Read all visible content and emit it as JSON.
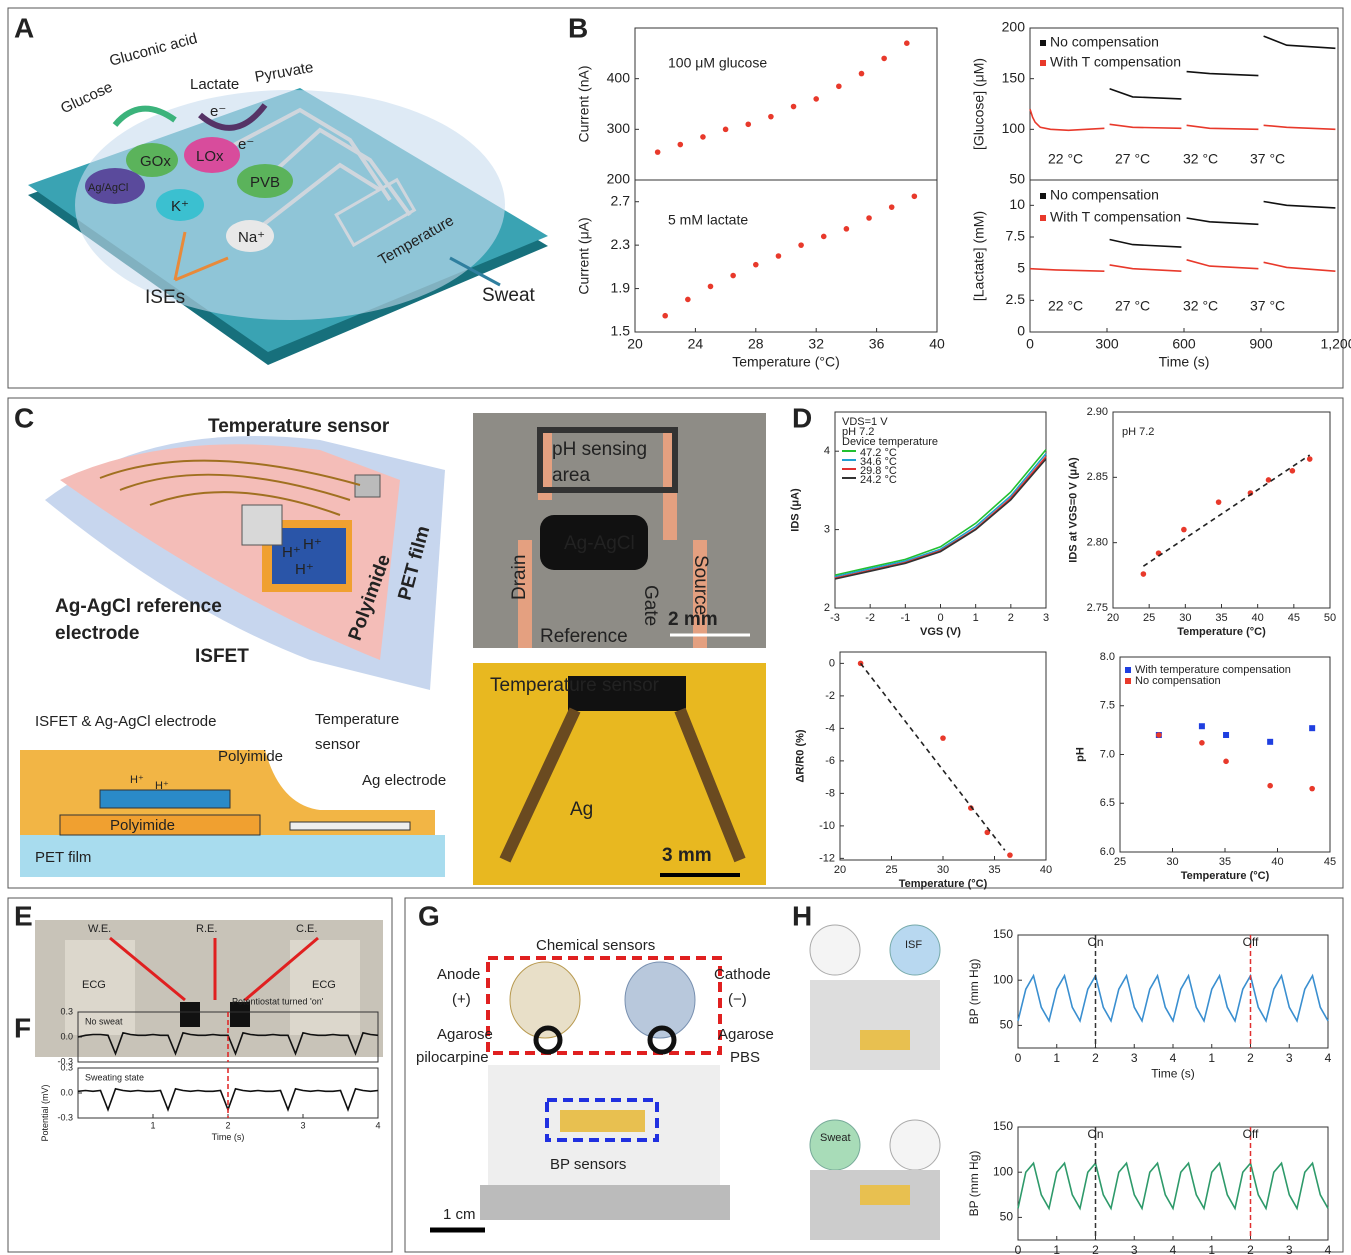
{
  "panels": [
    "A",
    "B",
    "C",
    "D",
    "E",
    "F",
    "G",
    "H"
  ],
  "figure": {
    "a": [
      "Glucose",
      "Gluconic acid",
      "Lactate",
      "Pyruvate",
      "GOx",
      "LOx",
      "Ag/AgCl",
      "PVB",
      "K⁺",
      "Na⁺",
      "ISEs",
      "Temperature",
      "Sweat",
      "e⁻",
      "e⁻"
    ],
    "c": [
      "Temperature sensor",
      "H⁺",
      "H⁺",
      "H⁺",
      "Ag-AgCl reference",
      "electrode",
      "ISFET",
      "Polyimide",
      "PET film",
      "ISFET & Ag-AgCl electrode",
      "Temperature",
      "sensor",
      "Polyimide",
      "Ag electrode",
      "H⁺",
      "H⁺",
      "Polyimide",
      "PET film",
      "pH sensing",
      "area",
      "Drain",
      "Source",
      "Ag-AgCl",
      "Gate",
      "Reference",
      "2 mm",
      "Temperature sensor",
      "Ag",
      "3 mm"
    ],
    "e": [
      "W.E.",
      "R.E.",
      "C.E.",
      "ECG",
      "ECG"
    ],
    "g": [
      "Chemical sensors",
      "Anode",
      "(+)",
      "Cathode",
      "(−)",
      "Agarose",
      "pilocarpine",
      "Agarose",
      "PBS",
      "BP sensors",
      "1 cm"
    ],
    "h": [
      "ISF",
      "Sweat"
    ]
  },
  "chart_data": [
    {
      "type": "scatter",
      "ylabel": "Current (nA)",
      "xlim": [
        20,
        40
      ],
      "ylim": [
        200,
        500
      ],
      "yticks": [
        200,
        300,
        400
      ],
      "annotations": [
        "100 μM glucose"
      ],
      "series": [
        {
          "color": "#e8392b",
          "x": [
            21.5,
            23,
            24.5,
            26,
            27.5,
            29,
            30.5,
            32,
            33.5,
            35,
            36.5,
            38
          ],
          "values": [
            255,
            270,
            285,
            300,
            310,
            325,
            345,
            360,
            385,
            410,
            440,
            470
          ]
        }
      ]
    },
    {
      "type": "scatter",
      "xlabel": "Temperature (°C)",
      "ylabel": "Current (μA)",
      "xlim": [
        20,
        40
      ],
      "ylim": [
        1.5,
        2.9
      ],
      "xticks": [
        20,
        24,
        28,
        32,
        36,
        40
      ],
      "yticks": [
        1.5,
        1.9,
        2.3,
        2.7
      ],
      "annotations": [
        "5 mM lactate"
      ],
      "series": [
        {
          "color": "#e8392b",
          "x": [
            22,
            23.5,
            25,
            26.5,
            28,
            29.5,
            31,
            32.5,
            34,
            35.5,
            37,
            38.5
          ],
          "values": [
            1.65,
            1.8,
            1.92,
            2.02,
            2.12,
            2.2,
            2.3,
            2.38,
            2.45,
            2.55,
            2.65,
            2.75
          ]
        }
      ]
    },
    {
      "type": "line",
      "ylabel": "[Glucose] (μM)",
      "xlim": [
        0,
        1200
      ],
      "ylim": [
        50,
        200
      ],
      "yticks": [
        50,
        100,
        150,
        200
      ],
      "annotations": [
        "22 °C",
        "27 °C",
        "32 °C",
        "37 °C"
      ],
      "series": [
        {
          "name": "No compensation",
          "color": "#111111",
          "x": [
            310,
            400,
            590,
            null,
            610,
            700,
            890,
            null,
            910,
            1000,
            1190
          ],
          "values": [
            140,
            132,
            130,
            null,
            157,
            155,
            153,
            null,
            192,
            183,
            180
          ]
        },
        {
          "name": "With T compensation",
          "color": "#e8392b",
          "x": [
            0,
            10,
            20,
            40,
            80,
            150,
            290,
            null,
            310,
            400,
            590,
            null,
            610,
            700,
            890,
            null,
            910,
            1000,
            1190
          ],
          "values": [
            120,
            112,
            107,
            102,
            100,
            99,
            101,
            null,
            105,
            102,
            101,
            null,
            104,
            101,
            100,
            null,
            104,
            102,
            100
          ]
        }
      ]
    },
    {
      "type": "line",
      "xlabel": "Time (s)",
      "ylabel": "[Lactate] (mM)",
      "xlim": [
        0,
        1200
      ],
      "ylim": [
        0,
        12
      ],
      "xticks": [
        0,
        300,
        600,
        900,
        {
          "value": 1200,
          "label": "1,200"
        }
      ],
      "yticks": [
        0,
        2.5,
        5,
        7.5,
        10
      ],
      "annotations": [
        "22 °C",
        "27 °C",
        "32 °C",
        "37 °C"
      ],
      "series": [
        {
          "name": "No compensation",
          "color": "#111111",
          "x": [
            310,
            400,
            590,
            null,
            610,
            700,
            890,
            null,
            910,
            1000,
            1190
          ],
          "values": [
            7.3,
            6.9,
            6.7,
            null,
            9.0,
            8.7,
            8.5,
            null,
            10.3,
            10.0,
            9.8
          ]
        },
        {
          "name": "With T compensation",
          "color": "#e8392b",
          "x": [
            0,
            100,
            290,
            null,
            310,
            400,
            590,
            null,
            610,
            700,
            890,
            null,
            910,
            1000,
            1190
          ],
          "values": [
            5.0,
            4.9,
            4.8,
            null,
            5.3,
            5.0,
            4.8,
            null,
            5.7,
            5.2,
            5.0,
            null,
            5.5,
            5.1,
            4.8
          ]
        }
      ]
    },
    {
      "type": "line",
      "xlabel": "VGS (V)",
      "ylabel": "IDS (μA)",
      "xlim": [
        -3,
        3
      ],
      "ylim": [
        2,
        4.5
      ],
      "xticks": [
        -3,
        -2,
        -1,
        0,
        1,
        2,
        3
      ],
      "yticks": [
        2,
        3,
        4
      ],
      "annotations": [
        "VDS=1 V",
        "pH 7.2",
        "Device temperature"
      ],
      "x": [
        -3,
        -2,
        -1,
        0,
        1,
        2,
        3
      ],
      "series": [
        {
          "name": "47.2 °C",
          "color": "#22c030",
          "values": [
            2.42,
            2.52,
            2.62,
            2.78,
            3.08,
            3.48,
            4.02
          ]
        },
        {
          "name": "34.6 °C",
          "color": "#20a0d0",
          "values": [
            2.4,
            2.5,
            2.6,
            2.75,
            3.04,
            3.43,
            3.97
          ]
        },
        {
          "name": "29.8 °C",
          "color": "#e03030",
          "values": [
            2.38,
            2.48,
            2.58,
            2.73,
            3.01,
            3.4,
            3.93
          ]
        },
        {
          "name": "24.2 °C",
          "color": "#333333",
          "values": [
            2.37,
            2.47,
            2.57,
            2.72,
            3.0,
            3.38,
            3.9
          ]
        }
      ]
    },
    {
      "type": "scatter",
      "xlabel": "Temperature (°C)",
      "ylabel": "IDS at VGS=0 V (μA)",
      "xlim": [
        20,
        50
      ],
      "ylim": [
        2.75,
        2.9
      ],
      "xticks": [
        20,
        25,
        30,
        35,
        40,
        45,
        50
      ],
      "yticks": [
        2.75,
        {
          "value": 2.8,
          "label": "2.80"
        },
        2.85,
        {
          "value": 2.9,
          "label": "2.90"
        }
      ],
      "annotations": [
        "pH 7.2"
      ],
      "series": [
        {
          "color": "#e8392b",
          "x": [
            24.2,
            26.3,
            29.8,
            34.6,
            39,
            41.5,
            44.8,
            47.2
          ],
          "values": [
            2.776,
            2.792,
            2.81,
            2.831,
            2.838,
            2.848,
            2.855,
            2.864
          ]
        },
        {
          "type": "line",
          "dashed": true,
          "color": "#222222",
          "x": [
            24.2,
            47.2
          ],
          "values": [
            2.782,
            2.867
          ]
        }
      ]
    },
    {
      "type": "scatter",
      "xlabel": "Temperature (°C)",
      "ylabel": "ΔR/R0 (%)",
      "xlim": [
        20,
        40
      ],
      "ylim": [
        -12.1,
        0.7
      ],
      "xticks": [
        20,
        25,
        30,
        35,
        40
      ],
      "yticks": [
        0,
        -2,
        -4,
        -6,
        -8,
        -10,
        -12
      ],
      "series": [
        {
          "color": "#e8392b",
          "x": [
            22,
            30,
            32.7,
            34.3,
            36.5
          ],
          "values": [
            0,
            -4.6,
            -8.9,
            -10.4,
            -11.8
          ]
        },
        {
          "type": "line",
          "dashed": true,
          "color": "#222222",
          "x": [
            22,
            36
          ],
          "values": [
            0,
            -11.5
          ]
        }
      ]
    },
    {
      "type": "scatter",
      "xlabel": "Temperature (°C)",
      "ylabel": "pH",
      "xlim": [
        25,
        45
      ],
      "ylim": [
        6,
        8
      ],
      "xticks": [
        25,
        30,
        35,
        40,
        45
      ],
      "yticks": [
        {
          "value": 6,
          "label": "6.0"
        },
        6.5,
        {
          "value": 7,
          "label": "7.0"
        },
        7.5,
        {
          "value": 8,
          "label": "8.0"
        }
      ],
      "series": [
        {
          "name": "With temperature compensation",
          "color": "#1f3fe0",
          "marker": "square",
          "x": [
            28.7,
            32.8,
            35.1,
            39.3,
            43.3
          ],
          "values": [
            7.2,
            7.29,
            7.2,
            7.13,
            7.27
          ]
        },
        {
          "name": "No compensation",
          "color": "#e8392b",
          "x": [
            28.7,
            32.8,
            35.1,
            39.3,
            43.3
          ],
          "values": [
            7.2,
            7.12,
            6.93,
            6.68,
            6.65
          ]
        }
      ]
    },
    {
      "type": "line",
      "xlim": [
        0,
        4
      ],
      "ylim": [
        -0.3,
        0.3
      ],
      "yticks": [
        -0.3,
        {
          "value": 0,
          "label": "0.0"
        },
        0.3
      ],
      "annotations": [
        "No sweat",
        "Potentiostat turned 'on'"
      ],
      "vlines": [
        2
      ],
      "x": [
        0,
        0.1,
        0.2,
        0.3,
        0.4,
        0.5,
        0.6,
        0.7,
        0.8,
        0.9,
        1,
        1.1,
        1.2,
        1.3,
        1.4,
        1.5,
        1.6,
        1.7,
        1.8,
        1.9,
        2,
        2.1,
        2.2,
        2.3,
        2.4,
        2.5,
        2.6,
        2.7,
        2.8,
        2.9,
        3,
        3.1,
        3.2,
        3.3,
        3.4,
        3.5,
        3.6,
        3.7,
        3.8,
        3.9,
        4
      ],
      "series": [
        {
          "color": "#111111",
          "values": [
            0,
            0.02,
            0.03,
            0.03,
            0.02,
            -0.2,
            0.05,
            0.03,
            0.02,
            0.02,
            0.03,
            0.02,
            0.02,
            -0.2,
            0.05,
            0.03,
            0.02,
            0.02,
            0.03,
            0.02,
            0.02,
            -0.2,
            0.05,
            0.03,
            0.02,
            0.02,
            0.03,
            0.02,
            0.02,
            -0.2,
            0.05,
            0.03,
            0.02,
            0.02,
            0.03,
            0.02,
            0.02,
            -0.2,
            0.05,
            0.03,
            0.02
          ]
        }
      ]
    },
    {
      "type": "line",
      "xlabel": "Time (s)",
      "ylabel": "Potential (mV)",
      "xlim": [
        0,
        4
      ],
      "ylim": [
        -0.3,
        0.3
      ],
      "xticks": [
        1,
        2,
        3,
        4
      ],
      "yticks": [
        -0.3,
        {
          "value": 0,
          "label": "0.0"
        },
        0.3
      ],
      "annotations": [
        "Sweating state"
      ],
      "vlines": [
        2
      ],
      "x": [
        0,
        0.1,
        0.2,
        0.3,
        0.4,
        0.5,
        0.6,
        0.7,
        0.8,
        0.9,
        1,
        1.1,
        1.2,
        1.3,
        1.4,
        1.5,
        1.6,
        1.7,
        1.8,
        1.9,
        2,
        2.1,
        2.2,
        2.3,
        2.4,
        2.5,
        2.6,
        2.7,
        2.8,
        2.9,
        3,
        3.1,
        3.2,
        3.3,
        3.4,
        3.5,
        3.6,
        3.7,
        3.8,
        3.9,
        4
      ],
      "series": [
        {
          "color": "#111111",
          "values": [
            0.02,
            0.03,
            0.02,
            0.03,
            -0.2,
            0.05,
            0.03,
            0.02,
            0.03,
            0.02,
            0.02,
            0.03,
            -0.2,
            0.05,
            0.03,
            0.02,
            0.03,
            0.02,
            0.02,
            0.03,
            -0.2,
            0.05,
            0.03,
            0.02,
            0.03,
            0.02,
            0.02,
            0.03,
            -0.2,
            0.05,
            0.03,
            0.02,
            0.03,
            0.02,
            0.02,
            0.03,
            -0.2,
            0.05,
            0.03,
            0.02,
            0.03
          ]
        }
      ]
    },
    {
      "type": "line",
      "xlabel": "Time (s)",
      "ylabel": "BP (mm Hg)",
      "xlim": [
        0,
        8
      ],
      "ylim": [
        25,
        150
      ],
      "xticks": [
        0,
        1,
        2,
        3,
        4,
        {
          "value": 5,
          "label": "1"
        },
        {
          "value": 6,
          "label": "2"
        },
        {
          "value": 7,
          "label": "3"
        },
        {
          "value": 8,
          "label": "4"
        }
      ],
      "yticks": [
        50,
        100,
        150
      ],
      "vlines": [
        {
          "x": 2,
          "label": "On",
          "color": "#333333"
        },
        {
          "x": 6,
          "label": "Off",
          "color": "#e03030"
        }
      ],
      "x": [
        0,
        0.2,
        0.4,
        0.6,
        0.8,
        1,
        1.2,
        1.4,
        1.6,
        1.8,
        2,
        2.2,
        2.4,
        2.6,
        2.8,
        3,
        3.2,
        3.4,
        3.6,
        3.8,
        4,
        4.2,
        4.4,
        4.6,
        4.8,
        5,
        5.2,
        5.4,
        5.6,
        5.8,
        6,
        6.2,
        6.4,
        6.6,
        6.8,
        7,
        7.2,
        7.4,
        7.6,
        7.8,
        8
      ],
      "series": [
        {
          "color": "#3a8fd0",
          "values": [
            55,
            90,
            105,
            70,
            55,
            90,
            105,
            70,
            55,
            90,
            105,
            70,
            55,
            90,
            105,
            70,
            55,
            90,
            105,
            70,
            55,
            90,
            105,
            70,
            55,
            90,
            105,
            70,
            55,
            90,
            105,
            70,
            55,
            90,
            105,
            70,
            55,
            90,
            105,
            70,
            55
          ]
        }
      ]
    },
    {
      "type": "line",
      "xlabel": "Time (s)",
      "ylabel": "BP (mm Hg)",
      "xlim": [
        0,
        8
      ],
      "ylim": [
        25,
        150
      ],
      "xticks": [
        0,
        1,
        2,
        3,
        4,
        {
          "value": 5,
          "label": "1"
        },
        {
          "value": 6,
          "label": "2"
        },
        {
          "value": 7,
          "label": "3"
        },
        {
          "value": 8,
          "label": "4"
        }
      ],
      "yticks": [
        50,
        100,
        150
      ],
      "vlines": [
        {
          "x": 2,
          "label": "On",
          "color": "#333333"
        },
        {
          "x": 6,
          "label": "Off",
          "color": "#e03030"
        }
      ],
      "x": [
        0,
        0.2,
        0.4,
        0.6,
        0.8,
        1,
        1.2,
        1.4,
        1.6,
        1.8,
        2,
        2.2,
        2.4,
        2.6,
        2.8,
        3,
        3.2,
        3.4,
        3.6,
        3.8,
        4,
        4.2,
        4.4,
        4.6,
        4.8,
        5,
        5.2,
        5.4,
        5.6,
        5.8,
        6,
        6.2,
        6.4,
        6.6,
        6.8,
        7,
        7.2,
        7.4,
        7.6,
        7.8,
        8
      ],
      "series": [
        {
          "color": "#2e9a6a",
          "values": [
            60,
            100,
            110,
            75,
            60,
            100,
            110,
            75,
            60,
            100,
            110,
            75,
            60,
            100,
            110,
            75,
            60,
            100,
            110,
            75,
            60,
            100,
            110,
            75,
            60,
            100,
            110,
            75,
            60,
            100,
            110,
            75,
            60,
            100,
            110,
            75,
            60,
            100,
            110,
            75,
            60
          ]
        }
      ]
    }
  ]
}
